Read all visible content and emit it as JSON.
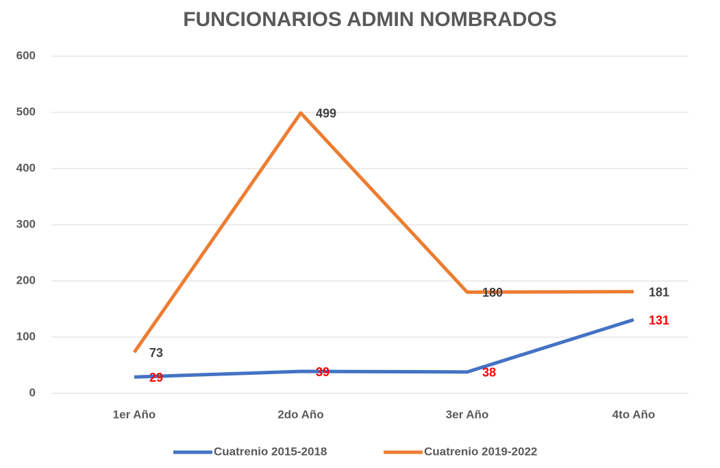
{
  "chart_data": {
    "type": "line",
    "title": "FUNCIONARIOS ADMIN NOMBRADOS",
    "categories": [
      "1er Año",
      "2do Año",
      "3er Año",
      "4to Año"
    ],
    "series": [
      {
        "name": "Cuatrenio 2015-2018",
        "color": "#4472c4",
        "label_color": "#ff0000",
        "values": [
          29,
          39,
          38,
          131
        ]
      },
      {
        "name": "Cuatrenio 2019-2022",
        "color": "#ed7d31",
        "label_color": "#404040",
        "values": [
          73,
          499,
          180,
          181
        ]
      }
    ],
    "ylim": [
      0,
      600
    ],
    "yticks": [
      0,
      100,
      200,
      300,
      400,
      500,
      600
    ],
    "grid": true,
    "legend": "bottom"
  }
}
